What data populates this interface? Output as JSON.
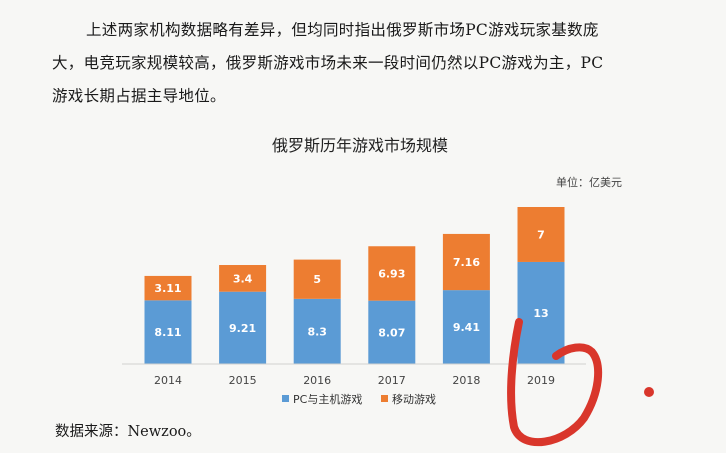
{
  "paragraph": {
    "lines": [
      "上述两家机构数据略有差异，但均同时指出俄罗斯市场PC游戏玩家基数庞",
      "大，电竞玩家规模较高，俄罗斯游戏市场未来一段时间仍然以PC游戏为主，PC",
      "游戏长期占据主导地位。"
    ]
  },
  "chart_data": {
    "type": "bar",
    "stacked": true,
    "title": "俄罗斯历年游戏市场规模",
    "unit": "单位：亿美元",
    "categories": [
      "2014",
      "2015",
      "2016",
      "2017",
      "2018",
      "2019"
    ],
    "series": [
      {
        "name": "PC与主机游戏",
        "color": "#5b9bd5",
        "values": [
          8.11,
          9.21,
          8.3,
          8.07,
          9.41,
          13
        ]
      },
      {
        "name": "移动游戏",
        "color": "#ed7d31",
        "values": [
          3.11,
          3.4,
          5,
          6.93,
          7.16,
          7
        ]
      }
    ],
    "legend_position": "bottom",
    "grid": false
  },
  "source": "数据来源：Newzoo。",
  "annotation": {
    "color": "#d9362b"
  }
}
